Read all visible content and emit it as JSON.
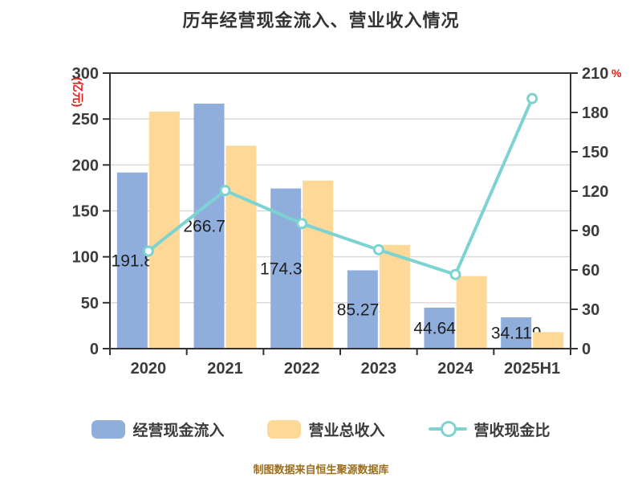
{
  "title": "历年经营现金流入、营业收入情况",
  "footer": "制图数据来自恒生聚源数据库",
  "legend": [
    {
      "label": "经营现金流入",
      "type": "bar",
      "color": "#8FAEDC"
    },
    {
      "label": "营业总收入",
      "type": "bar",
      "color": "#FDD897"
    },
    {
      "label": "营收现金比",
      "type": "line",
      "color": "#7DD2D2"
    }
  ],
  "colors": {
    "bar_blue": "#8FAEDC",
    "bar_orange": "#FDD897",
    "line_teal": "#7DD2D2",
    "axis": "#333333",
    "grid": "#D9D9D9",
    "tick_text": "#3B3B3B",
    "unit_red": "#E81515",
    "footer_text": "#9C6E1A",
    "background": "#FFFFFF"
  },
  "chart_data": {
    "type": "bar",
    "subtype": "bar+line combo, dual axis",
    "title": "历年经营现金流入、营业收入情况",
    "categories": [
      "2020",
      "2021",
      "2022",
      "2023",
      "2024",
      "2025H1"
    ],
    "series": [
      {
        "name": "经营现金流入",
        "type": "bar",
        "axis": "left",
        "color": "#8FAEDC",
        "values": [
          191.8,
          266.77,
          174.39,
          85.274,
          44.649,
          34.119
        ],
        "labels": [
          "191.8",
          "266.77",
          "174.39",
          "85.274",
          "44.649",
          "34.119"
        ]
      },
      {
        "name": "营业总收入",
        "type": "bar",
        "axis": "left",
        "color": "#FDD897",
        "values": [
          258,
          221,
          183,
          113,
          79,
          18
        ]
      },
      {
        "name": "营收现金比",
        "type": "line",
        "axis": "right",
        "color": "#7DD2D2",
        "marker": "circle-white-fill",
        "values": [
          74.3,
          120.5,
          95.3,
          75.4,
          56.5,
          190.6
        ]
      }
    ],
    "left_axis": {
      "unit": "(亿元)",
      "min": 0,
      "max": 300,
      "step": 50,
      "ticks": [
        300,
        250,
        200,
        150,
        100,
        50,
        0
      ]
    },
    "right_axis": {
      "unit": "%",
      "min": 0,
      "max": 210,
      "step": 30,
      "ticks": [
        210,
        180,
        150,
        120,
        90,
        60,
        30,
        0
      ]
    },
    "grid": true,
    "legend_position": "bottom",
    "notes": "value labels printed at center of blue bars, partially clipped by orange bars"
  }
}
